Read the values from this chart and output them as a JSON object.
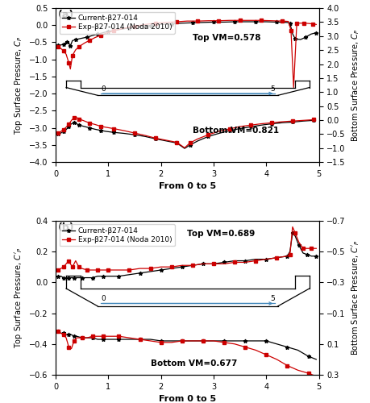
{
  "panel_a": {
    "ylabel_left": "Top Surface Pressure, $C_P$",
    "ylabel_right": "Bottom Surface Pressure, $C_P$",
    "xlabel": "From 0 to 5",
    "ylim_left": [
      -4,
      0.5
    ],
    "ylim_right": [
      -1.5,
      4
    ],
    "yticks_left": [
      0.5,
      0,
      -0.5,
      -1,
      -1.5,
      -2,
      -2.5,
      -3,
      -3.5,
      -4
    ],
    "yticks_right": [
      4,
      3.5,
      3,
      2.5,
      2,
      1.5,
      1,
      0.5,
      0,
      -0.5,
      -1,
      -1.5
    ],
    "annotation_top": "Top VM=0.578",
    "annotation_bottom": "Bottom VM=0.821",
    "top_current_x": [
      0.05,
      0.1,
      0.15,
      0.2,
      0.22,
      0.25,
      0.28,
      0.32,
      0.38,
      0.5,
      0.6,
      0.7,
      0.8,
      0.9,
      1.0,
      1.2,
      1.4,
      1.6,
      1.8,
      2.0,
      2.2,
      2.4,
      2.6,
      2.8,
      3.0,
      3.2,
      3.4,
      3.6,
      3.8,
      4.0,
      4.2,
      4.4,
      4.45,
      4.5,
      4.55,
      4.65,
      4.75,
      4.85,
      4.95
    ],
    "top_current_y": [
      -0.58,
      -0.58,
      -0.55,
      -0.52,
      -0.48,
      -0.52,
      -0.6,
      -0.45,
      -0.42,
      -0.38,
      -0.35,
      -0.3,
      -0.26,
      -0.22,
      -0.18,
      -0.13,
      -0.08,
      -0.04,
      -0.01,
      0.02,
      0.04,
      0.06,
      0.07,
      0.08,
      0.09,
      0.09,
      0.1,
      0.1,
      0.1,
      0.1,
      0.09,
      0.08,
      0.06,
      -0.25,
      -0.4,
      -0.42,
      -0.35,
      -0.26,
      -0.22
    ],
    "top_exp_x": [
      0.05,
      0.1,
      0.15,
      0.2,
      0.25,
      0.28,
      0.32,
      0.38,
      0.45,
      0.55,
      0.65,
      0.75,
      0.85,
      0.95,
      1.1,
      1.3,
      1.5,
      1.7,
      1.9,
      2.1,
      2.3,
      2.5,
      2.7,
      2.9,
      3.1,
      3.3,
      3.5,
      3.7,
      3.9,
      4.1,
      4.3,
      4.42,
      4.47,
      4.52,
      4.58,
      4.65,
      4.72,
      4.8,
      4.88,
      4.95
    ],
    "top_exp_y": [
      -0.62,
      -0.68,
      -0.75,
      -0.85,
      -1.1,
      -1.28,
      -0.88,
      -0.72,
      -0.62,
      -0.52,
      -0.44,
      -0.36,
      -0.3,
      -0.24,
      -0.16,
      -0.09,
      -0.03,
      0.02,
      0.06,
      0.08,
      0.1,
      0.12,
      0.12,
      0.13,
      0.13,
      0.14,
      0.14,
      0.14,
      0.14,
      0.13,
      0.12,
      0.11,
      -0.15,
      -1.82,
      0.06,
      0.06,
      0.06,
      0.05,
      0.04,
      0.02
    ],
    "bottom_current_x": [
      0.05,
      0.1,
      0.15,
      0.2,
      0.25,
      0.3,
      0.35,
      0.4,
      0.45,
      0.55,
      0.65,
      0.75,
      0.85,
      0.95,
      1.1,
      1.3,
      1.5,
      1.7,
      1.9,
      2.1,
      2.3,
      2.45,
      2.55,
      2.7,
      2.9,
      3.1,
      3.3,
      3.5,
      3.7,
      3.9,
      4.1,
      4.3,
      4.5,
      4.7,
      4.9
    ],
    "bottom_current_y": [
      -3.18,
      -3.15,
      -3.1,
      -3.05,
      -2.96,
      -2.88,
      -2.85,
      -2.88,
      -2.92,
      -2.96,
      -3.0,
      -3.04,
      -3.07,
      -3.1,
      -3.13,
      -3.16,
      -3.2,
      -3.25,
      -3.32,
      -3.38,
      -3.44,
      -3.6,
      -3.5,
      -3.38,
      -3.25,
      -3.16,
      -3.08,
      -3.02,
      -2.97,
      -2.92,
      -2.88,
      -2.85,
      -2.83,
      -2.8,
      -2.78
    ],
    "bottom_exp_x": [
      0.05,
      0.1,
      0.15,
      0.2,
      0.25,
      0.3,
      0.35,
      0.4,
      0.45,
      0.55,
      0.65,
      0.75,
      0.85,
      0.95,
      1.1,
      1.3,
      1.5,
      1.7,
      1.9,
      2.1,
      2.3,
      2.45,
      2.55,
      2.7,
      2.9,
      3.1,
      3.3,
      3.5,
      3.7,
      3.9,
      4.1,
      4.3,
      4.5,
      4.7,
      4.9
    ],
    "bottom_exp_y": [
      -3.15,
      -3.1,
      -3.05,
      -2.98,
      -2.9,
      -2.78,
      -2.7,
      -2.7,
      -2.74,
      -2.8,
      -2.86,
      -2.9,
      -2.95,
      -2.98,
      -3.02,
      -3.08,
      -3.15,
      -3.22,
      -3.3,
      -3.36,
      -3.42,
      -3.58,
      -3.44,
      -3.32,
      -3.2,
      -3.1,
      -3.03,
      -2.96,
      -2.92,
      -2.88,
      -2.85,
      -2.82,
      -2.8,
      -2.78,
      -2.76
    ]
  },
  "panel_b": {
    "ylabel_left": "Top Surface Pressure, $C'_P$",
    "ylabel_right": "Bottom Surface Pressure, $C'_P$",
    "xlabel": "From 0 to 5",
    "ylim_left": [
      -0.6,
      0.4
    ],
    "ylim_right": [
      0.3,
      -0.7
    ],
    "yticks_left": [
      0.4,
      0.2,
      0.0,
      -0.2,
      -0.4,
      -0.6
    ],
    "yticks_right": [
      0.3,
      0.1,
      -0.1,
      -0.3,
      -0.5,
      -0.7
    ],
    "annotation_top": "Top VM=0.689",
    "annotation_bottom": "Bottom VM=0.677",
    "top_current_x": [
      0.05,
      0.1,
      0.15,
      0.2,
      0.25,
      0.3,
      0.35,
      0.4,
      0.5,
      0.6,
      0.7,
      0.8,
      0.9,
      1.0,
      1.2,
      1.4,
      1.6,
      1.8,
      2.0,
      2.2,
      2.4,
      2.6,
      2.8,
      3.0,
      3.2,
      3.4,
      3.6,
      3.8,
      4.0,
      4.2,
      4.4,
      4.45,
      4.5,
      4.55,
      4.62,
      4.7,
      4.78,
      4.86,
      4.95
    ],
    "top_current_y": [
      0.04,
      0.04,
      0.03,
      0.03,
      0.03,
      0.03,
      0.03,
      0.03,
      0.03,
      0.03,
      0.03,
      0.04,
      0.04,
      0.04,
      0.04,
      0.05,
      0.06,
      0.07,
      0.08,
      0.09,
      0.1,
      0.11,
      0.12,
      0.12,
      0.13,
      0.14,
      0.14,
      0.15,
      0.15,
      0.16,
      0.17,
      0.2,
      0.32,
      0.3,
      0.24,
      0.19,
      0.18,
      0.17,
      0.17
    ],
    "top_exp_x": [
      0.05,
      0.1,
      0.15,
      0.2,
      0.25,
      0.28,
      0.32,
      0.38,
      0.44,
      0.5,
      0.6,
      0.7,
      0.8,
      0.9,
      1.0,
      1.2,
      1.4,
      1.6,
      1.8,
      2.0,
      2.2,
      2.4,
      2.6,
      2.8,
      3.0,
      3.2,
      3.4,
      3.6,
      3.8,
      4.0,
      4.2,
      4.4,
      4.45,
      4.5,
      4.55,
      4.62,
      4.7,
      4.78,
      4.86,
      4.95
    ],
    "top_exp_y": [
      0.08,
      0.09,
      0.1,
      0.12,
      0.14,
      0.12,
      0.1,
      0.14,
      0.1,
      0.09,
      0.08,
      0.08,
      0.08,
      0.08,
      0.08,
      0.08,
      0.08,
      0.09,
      0.09,
      0.1,
      0.1,
      0.11,
      0.11,
      0.12,
      0.12,
      0.12,
      0.13,
      0.13,
      0.14,
      0.15,
      0.16,
      0.17,
      0.18,
      0.36,
      0.32,
      0.26,
      0.22,
      0.22,
      0.22,
      0.22
    ],
    "bottom_current_x": [
      0.05,
      0.1,
      0.15,
      0.2,
      0.25,
      0.3,
      0.35,
      0.4,
      0.5,
      0.6,
      0.7,
      0.8,
      0.9,
      1.0,
      1.2,
      1.4,
      1.6,
      1.8,
      2.0,
      2.2,
      2.4,
      2.6,
      2.8,
      3.0,
      3.2,
      3.4,
      3.6,
      3.8,
      4.0,
      4.2,
      4.4,
      4.6,
      4.8,
      4.95
    ],
    "bottom_current_y": [
      -0.32,
      -0.33,
      -0.33,
      -0.34,
      -0.34,
      -0.34,
      -0.35,
      -0.35,
      -0.36,
      -0.36,
      -0.36,
      -0.37,
      -0.37,
      -0.37,
      -0.37,
      -0.37,
      -0.37,
      -0.37,
      -0.38,
      -0.38,
      -0.38,
      -0.38,
      -0.38,
      -0.38,
      -0.38,
      -0.38,
      -0.38,
      -0.38,
      -0.38,
      -0.4,
      -0.42,
      -0.44,
      -0.48,
      -0.5
    ],
    "bottom_exp_x": [
      0.05,
      0.1,
      0.15,
      0.2,
      0.25,
      0.3,
      0.35,
      0.4,
      0.5,
      0.6,
      0.7,
      0.8,
      0.9,
      1.0,
      1.2,
      1.4,
      1.6,
      1.8,
      2.0,
      2.2,
      2.4,
      2.6,
      2.8,
      3.0,
      3.2,
      3.4,
      3.6,
      3.8,
      4.0,
      4.2,
      4.4,
      4.6,
      4.8,
      4.95
    ],
    "bottom_exp_y": [
      -0.32,
      -0.33,
      -0.34,
      -0.36,
      -0.42,
      -0.43,
      -0.38,
      -0.36,
      -0.36,
      -0.36,
      -0.35,
      -0.35,
      -0.35,
      -0.35,
      -0.35,
      -0.36,
      -0.37,
      -0.38,
      -0.39,
      -0.39,
      -0.38,
      -0.38,
      -0.38,
      -0.38,
      -0.39,
      -0.4,
      -0.42,
      -0.44,
      -0.47,
      -0.5,
      -0.54,
      -0.57,
      -0.59,
      -0.61
    ]
  },
  "legend_current": "Current-β27-014",
  "legend_exp": "Exp-β27-014 (Noda 2010)",
  "color_current": "#000000",
  "color_exp": "#cc0000"
}
